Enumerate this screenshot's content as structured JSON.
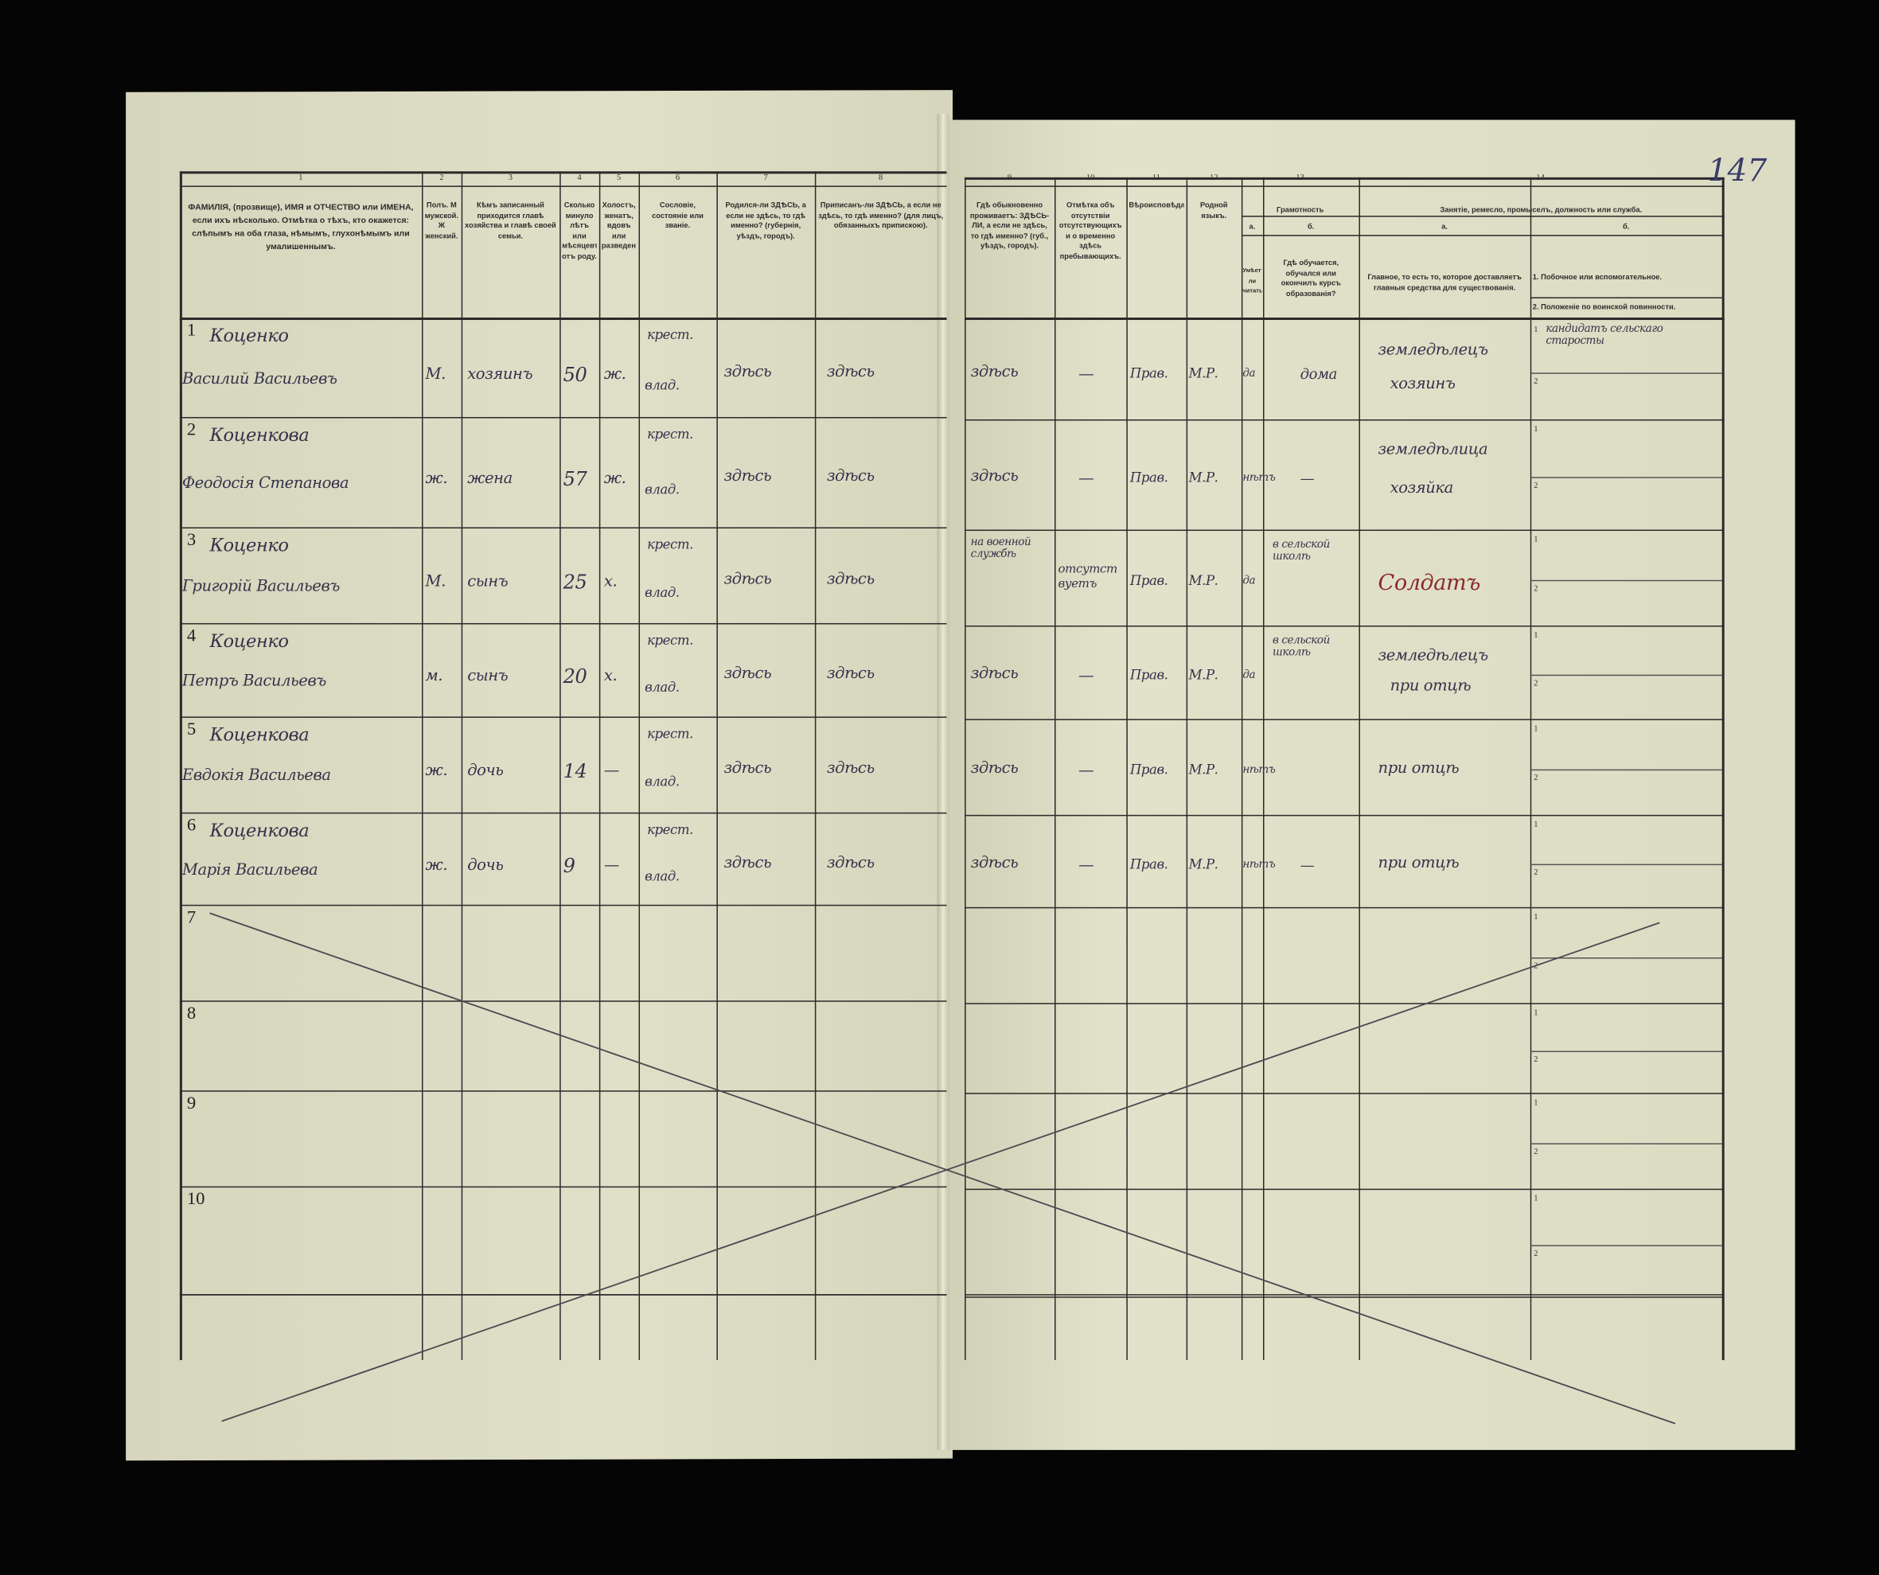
{
  "page_number": "147",
  "colors": {
    "paper": "#dcdcc4",
    "ink": "#35324a",
    "red_ink": "#8a2a2a",
    "background": "#050505"
  },
  "header": {
    "numbers": [
      "1",
      "2",
      "3",
      "4",
      "5",
      "6",
      "7",
      "8",
      "9",
      "10",
      "11",
      "12",
      "13",
      "14"
    ],
    "columns": [
      "ФАМИЛІЯ, (прозвище), ИМЯ и ОТЧЕСТВО или ИМЕНА, если ихъ нѣсколько. Отмѣтка о тѣхъ, кто окажется: слѣпымъ на оба глаза, нѣмымъ, глухонѣмымъ или умалишеннымъ.",
      "Полъ. М мужской. Ж женский.",
      "Кѣмъ записанный приходится главѣ хозяйства и главѣ своей семьи.",
      "Сколько минуло лѣтъ или мѣсяцевъ отъ роду.",
      "Холостъ, женатъ, вдовъ или разведенъ.",
      "Сословіе, состояніе или званіе.",
      "Родился-ли ЗДѢСЬ, а если не здѣсь, то гдѣ именно? (губернія, уѣздъ, городъ).",
      "Приписанъ-ли ЗДѢСЬ, а если не здѣсь, то гдѣ именно? (для лицъ, обязанныхъ припискою).",
      "Гдѣ обыкновенно проживаетъ: ЗДѢСЬ-ЛИ, а если не здѣсь, то гдѣ именно? (губ., уѣздъ, городъ).",
      "Отмѣтка объ отсутствіи отсутствующихъ и о временно здѣсь пребывающихъ.",
      "Вѣроисповѣданіе.",
      "Родной языкъ."
    ],
    "literacy_title": "Грамотность",
    "literacy_a_label": "а.",
    "literacy_b_label": "б.",
    "literacy_a": "Умѣетъ-ли читать?",
    "literacy_b": "Гдѣ обучается, обучался или окончилъ курсъ образованія?",
    "occupation_title": "Занятіе, ремесло, промыселъ, должность или служба.",
    "occupation_a_label": "а.",
    "occupation_b_label": "б.",
    "occupation_a": "Главное, то есть то, которое доставляетъ главныя средства для существованія.",
    "occupation_b1": "1. Побочное или вспомогательное.",
    "occupation_b2": "2. Положеніе по воинской повинности."
  },
  "rows": [
    {
      "n": "1",
      "surname": "Коценко",
      "given": "Василий Васильевъ",
      "sex": "М.",
      "relation": "хозяинъ",
      "age": "50",
      "marital": "ж.",
      "estate1": "крест.",
      "estate2": "влад.",
      "born": "здѣсь",
      "registered": "здѣсь",
      "residence": "здѣсь",
      "absence": "—",
      "religion": "Прав.",
      "language": "М.Р.",
      "lit_a": "да",
      "lit_b": "дома",
      "occ_a1": "земледѣлецъ",
      "occ_a2": "хозяинъ",
      "occ_b1": "кандидатъ сельскаго старосты",
      "occ_b2": ""
    },
    {
      "n": "2",
      "surname": "Коценкова",
      "given": "Феодосія Степанова",
      "sex": "ж.",
      "relation": "жена",
      "age": "57",
      "marital": "ж.",
      "estate1": "крест.",
      "estate2": "влад.",
      "born": "здѣсь",
      "registered": "здѣсь",
      "residence": "здѣсь",
      "absence": "—",
      "religion": "Прав.",
      "language": "М.Р.",
      "lit_a": "нѣтъ",
      "lit_b": "—",
      "occ_a1": "земледѣлица",
      "occ_a2": "хозяйка",
      "occ_b1": "",
      "occ_b2": ""
    },
    {
      "n": "3",
      "surname": "Коценко",
      "given": "Григорій Васильевъ",
      "sex": "М.",
      "relation": "сынъ",
      "age": "25",
      "marital": "х.",
      "estate1": "крест.",
      "estate2": "влад.",
      "born": "здѣсь",
      "registered": "здѣсь",
      "residence": "на военной службѣ",
      "absence": "отсутствуетъ",
      "religion": "Прав.",
      "language": "М.Р.",
      "lit_a": "да",
      "lit_b": "в сельской школѣ",
      "occ_a1": "Солдатъ",
      "occ_a2": "",
      "occ_b1": "",
      "occ_b2": ""
    },
    {
      "n": "4",
      "surname": "Коценко",
      "given": "Петръ Васильевъ",
      "sex": "м.",
      "relation": "сынъ",
      "age": "20",
      "marital": "х.",
      "estate1": "крест.",
      "estate2": "влад.",
      "born": "здѣсь",
      "registered": "здѣсь",
      "residence": "здѣсь",
      "absence": "—",
      "religion": "Прав.",
      "language": "М.Р.",
      "lit_a": "да",
      "lit_b": "в сельской школѣ",
      "occ_a1": "земледѣлецъ",
      "occ_a2": "при отцѣ",
      "occ_b1": "",
      "occ_b2": ""
    },
    {
      "n": "5",
      "surname": "Коценкова",
      "given": "Евдокія Васильева",
      "sex": "ж.",
      "relation": "дочь",
      "age": "14",
      "marital": "—",
      "estate1": "крест.",
      "estate2": "влад.",
      "born": "здѣсь",
      "registered": "здѣсь",
      "residence": "здѣсь",
      "absence": "—",
      "religion": "Прав.",
      "language": "М.Р.",
      "lit_a": "нѣтъ",
      "lit_b": "",
      "occ_a1": "при отцѣ",
      "occ_a2": "",
      "occ_b1": "",
      "occ_b2": ""
    },
    {
      "n": "6",
      "surname": "Коценкова",
      "given": "Марія Васильева",
      "sex": "ж.",
      "relation": "дочь",
      "age": "9",
      "marital": "—",
      "estate1": "крест.",
      "estate2": "влад.",
      "born": "здѣсь",
      "registered": "здѣсь",
      "residence": "здѣсь",
      "absence": "—",
      "religion": "Прав.",
      "language": "М.Р.",
      "lit_a": "нѣтъ",
      "lit_b": "—",
      "occ_a1": "при отцѣ",
      "occ_a2": "",
      "occ_b1": "",
      "occ_b2": ""
    },
    {
      "n": "7"
    },
    {
      "n": "8"
    },
    {
      "n": "9"
    },
    {
      "n": "10"
    }
  ],
  "sub_row_labels": [
    "1",
    "2"
  ]
}
